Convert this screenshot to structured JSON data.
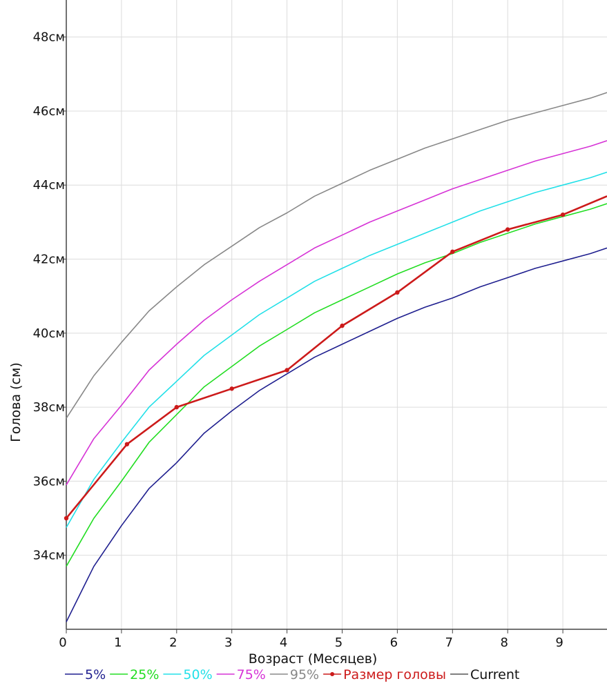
{
  "chart_data": {
    "type": "line",
    "xlabel": "Возраст (Месяцев)",
    "ylabel": "Голова (см)",
    "xlim": [
      0,
      9.8
    ],
    "ylim": [
      32,
      49
    ],
    "x_ticks": [
      0,
      1,
      2,
      3,
      4,
      5,
      6,
      7,
      8,
      9
    ],
    "x_tick_labels": [
      "0",
      "1",
      "2",
      "3",
      "4",
      "5",
      "6",
      "7",
      "8",
      "9"
    ],
    "y_ticks": [
      34,
      36,
      38,
      40,
      42,
      44,
      46,
      48
    ],
    "y_tick_labels": [
      "34см",
      "36см",
      "38см",
      "40см",
      "42см",
      "44см",
      "46см",
      "48см"
    ],
    "grid": true,
    "legend_position": "bottom",
    "series": [
      {
        "name": "5%",
        "color": "#1f1f8f",
        "markers": false,
        "x": [
          0,
          0.5,
          1,
          1.5,
          2,
          2.5,
          3,
          3.5,
          4,
          4.5,
          5,
          5.5,
          6,
          6.5,
          7,
          7.5,
          8,
          8.5,
          9,
          9.5,
          9.8
        ],
        "y": [
          32.2,
          33.7,
          34.8,
          35.8,
          36.5,
          37.3,
          37.9,
          38.45,
          38.9,
          39.35,
          39.7,
          40.05,
          40.4,
          40.7,
          40.95,
          41.25,
          41.5,
          41.75,
          41.95,
          42.15,
          42.3
        ]
      },
      {
        "name": "25%",
        "color": "#22dd22",
        "markers": false,
        "x": [
          0,
          0.5,
          1,
          1.5,
          2,
          2.5,
          3,
          3.5,
          4,
          4.5,
          5,
          5.5,
          6,
          6.5,
          7,
          7.5,
          8,
          8.5,
          9,
          9.5,
          9.8
        ],
        "y": [
          33.7,
          35.0,
          36.0,
          37.05,
          37.8,
          38.55,
          39.1,
          39.65,
          40.1,
          40.55,
          40.9,
          41.25,
          41.6,
          41.9,
          42.15,
          42.45,
          42.7,
          42.95,
          43.15,
          43.35,
          43.5
        ]
      },
      {
        "name": "50%",
        "color": "#22e0e8",
        "markers": false,
        "x": [
          0,
          0.5,
          1,
          1.5,
          2,
          2.5,
          3,
          3.5,
          4,
          4.5,
          5,
          5.5,
          6,
          6.5,
          7,
          7.5,
          8,
          8.5,
          9,
          9.5,
          9.8
        ],
        "y": [
          34.75,
          36.05,
          37.05,
          38.0,
          38.7,
          39.4,
          39.95,
          40.5,
          40.95,
          41.4,
          41.75,
          42.1,
          42.4,
          42.7,
          43.0,
          43.3,
          43.55,
          43.8,
          44.0,
          44.2,
          44.35
        ]
      },
      {
        "name": "75%",
        "color": "#d633d6",
        "markers": false,
        "x": [
          0,
          0.5,
          1,
          1.5,
          2,
          2.5,
          3,
          3.5,
          4,
          4.5,
          5,
          5.5,
          6,
          6.5,
          7,
          7.5,
          8,
          8.5,
          9,
          9.5,
          9.8
        ],
        "y": [
          35.9,
          37.15,
          38.05,
          39.0,
          39.7,
          40.35,
          40.9,
          41.4,
          41.85,
          42.3,
          42.65,
          43.0,
          43.3,
          43.6,
          43.9,
          44.15,
          44.4,
          44.65,
          44.85,
          45.05,
          45.2
        ]
      },
      {
        "name": "95%",
        "color": "#888888",
        "markers": false,
        "x": [
          0,
          0.5,
          1,
          1.5,
          2,
          2.5,
          3,
          3.5,
          4,
          4.5,
          5,
          5.5,
          6,
          6.5,
          7,
          7.5,
          8,
          8.5,
          9,
          9.5,
          9.8
        ],
        "y": [
          37.7,
          38.85,
          39.75,
          40.6,
          41.25,
          41.85,
          42.35,
          42.85,
          43.25,
          43.7,
          44.05,
          44.4,
          44.7,
          45.0,
          45.25,
          45.5,
          45.75,
          45.95,
          46.15,
          46.35,
          46.5
        ]
      },
      {
        "name": "Размер головы",
        "color": "#cc1a1a",
        "markers": true,
        "x": [
          0,
          1.1,
          2,
          3,
          4,
          5,
          6,
          7,
          8,
          9,
          9.8
        ],
        "y": [
          35.0,
          37.0,
          38.0,
          38.5,
          39.0,
          40.2,
          41.1,
          42.2,
          42.8,
          43.2,
          43.7
        ]
      }
    ],
    "legend": [
      {
        "name": "5%",
        "color": "#1f1f8f",
        "text_color": "#1f1f8f",
        "marker": false
      },
      {
        "name": "25%",
        "color": "#22dd22",
        "text_color": "#22dd22",
        "marker": false
      },
      {
        "name": "50%",
        "color": "#22e0e8",
        "text_color": "#22e0e8",
        "marker": false
      },
      {
        "name": "75%",
        "color": "#d633d6",
        "text_color": "#d633d6",
        "marker": false
      },
      {
        "name": "95%",
        "color": "#888888",
        "text_color": "#888888",
        "marker": false
      },
      {
        "name": "Размер головы",
        "color": "#cc1a1a",
        "text_color": "#cc1a1a",
        "marker": true
      },
      {
        "name": "Current",
        "color": "#555555",
        "text_color": "#111111",
        "marker": false
      }
    ]
  }
}
